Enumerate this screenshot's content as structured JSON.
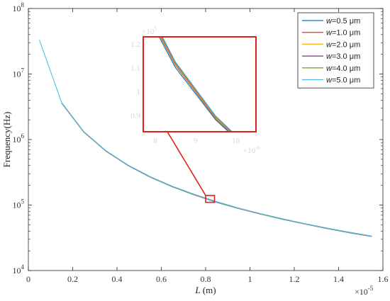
{
  "chart_data": {
    "type": "line",
    "xlabel_var": "L",
    "xlabel_unit": " (m)",
    "ylabel": "Frequency(Hz)",
    "x_exponent_base": "×10",
    "x_exponent_power": "-5",
    "x_scale_exponent": -5,
    "xlim": [
      0,
      1.6
    ],
    "ylim": [
      10000,
      100000000
    ],
    "y_scale": "log",
    "x_ticks": [
      "0",
      "0.2",
      "0.4",
      "0.6",
      "0.8",
      "1",
      "1.2",
      "1.4",
      "1.6"
    ],
    "y_ticks": [
      {
        "value": 10000,
        "base": "10",
        "power": "4"
      },
      {
        "value": 100000,
        "base": "10",
        "power": "5"
      },
      {
        "value": 1000000,
        "base": "10",
        "power": "6"
      },
      {
        "value": 10000000,
        "base": "10",
        "power": "7"
      },
      {
        "value": 100000000,
        "base": "10",
        "power": "8"
      }
    ],
    "legend_position": "top-right",
    "legend_var": "w",
    "series": [
      {
        "name": "=0.5 μm",
        "color": "#0072bd",
        "x": [
          0.15,
          0.25,
          0.35,
          0.45,
          0.55,
          0.65,
          0.75,
          0.85,
          0.95,
          1.05,
          1.15,
          1.25,
          1.35,
          1.45,
          1.55
        ],
        "y": [
          3600000,
          1300000,
          665000,
          400000,
          266000,
          190000,
          142000,
          110000,
          88000,
          72300,
          60300,
          51000,
          43600,
          37700,
          33000
        ]
      },
      {
        "name": "=1.0 μm",
        "color": "#d95319",
        "x": [
          0.15,
          0.25,
          0.35,
          0.45,
          0.55,
          0.65,
          0.75,
          0.85,
          0.95,
          1.05,
          1.15,
          1.25,
          1.35,
          1.45,
          1.55
        ],
        "y": [
          3620000,
          1305000,
          667000,
          402000,
          267000,
          191000,
          143000,
          111000,
          88500,
          72600,
          60600,
          51200,
          43800,
          37900,
          33200
        ]
      },
      {
        "name": "=2.0 μm",
        "color": "#edb120",
        "x": [
          0.15,
          0.25,
          0.35,
          0.45,
          0.55,
          0.65,
          0.75,
          0.85,
          0.95,
          1.05,
          1.15,
          1.25,
          1.35,
          1.45,
          1.55
        ],
        "y": [
          3640000,
          1310000,
          670000,
          404000,
          268000,
          192000,
          144000,
          111500,
          89000,
          73000,
          60900,
          51500,
          44000,
          38100,
          33300
        ]
      },
      {
        "name": "=3.0 μm",
        "color": "#7e2f8e",
        "x": [
          0.15,
          0.25,
          0.35,
          0.45,
          0.55,
          0.65,
          0.75,
          0.85,
          0.95,
          1.05,
          1.15,
          1.25,
          1.35,
          1.45,
          1.55
        ],
        "y": [
          3650000,
          1315000,
          672000,
          405000,
          269000,
          192500,
          144500,
          112000,
          89300,
          73200,
          61100,
          51600,
          44100,
          38200,
          33400
        ]
      },
      {
        "name": "=4.0 μm",
        "color": "#77ac30",
        "x": [
          0.15,
          0.25,
          0.35,
          0.45,
          0.55,
          0.65,
          0.75,
          0.85,
          0.95,
          1.05,
          1.15,
          1.25,
          1.35,
          1.45,
          1.55
        ],
        "y": [
          3660000,
          1318000,
          673000,
          406000,
          270000,
          193000,
          145000,
          112300,
          89500,
          73400,
          61200,
          51700,
          44200,
          38300,
          33500
        ]
      },
      {
        "name": "=5.0 μm",
        "color": "#4dbeee",
        "x": [
          0.05,
          0.15,
          0.25,
          0.35,
          0.45,
          0.55,
          0.65,
          0.75,
          0.85,
          0.95,
          1.05,
          1.15,
          1.25,
          1.35,
          1.45,
          1.55
        ],
        "y": [
          33000000,
          3670000,
          1320000,
          674000,
          407000,
          270500,
          193500,
          145300,
          112500,
          89700,
          73500,
          61300,
          51800,
          44300,
          38400,
          33550
        ]
      }
    ],
    "zoom_box": {
      "x": [
        0.8,
        0.84
      ],
      "y": [
        110000,
        140000
      ]
    },
    "inset": {
      "x_ticks": [
        "8",
        "9",
        "10"
      ],
      "x_tick_values": [
        8,
        9,
        10
      ],
      "xlim": [
        7.7,
        10.5
      ],
      "x_exponent_base": "×10",
      "x_exponent_power": "-6",
      "y_ticks": [
        "1.2",
        "1.1",
        "1",
        "0.9"
      ],
      "y_tick_values": [
        1.2,
        1.1,
        1.0,
        0.9
      ],
      "ylim": [
        0.83,
        1.23
      ],
      "y_exponent_base": "×10",
      "y_exponent_power": "5"
    }
  }
}
